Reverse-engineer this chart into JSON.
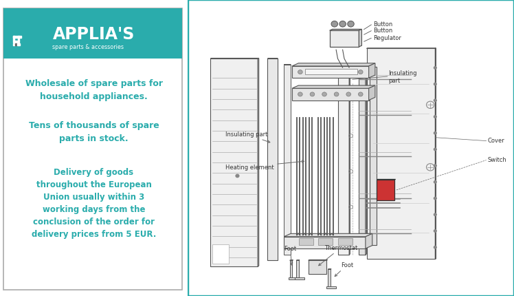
{
  "bg_color": "#ffffff",
  "header_bg": "#2aacac",
  "header_text_color": "#ffffff",
  "body_text_color": "#2aacac",
  "diagram_bg": "#ffffff",
  "diagram_border": "#2aacac",
  "line_color": "#555555",
  "light_line": "#888888",
  "figsize": [
    7.48,
    4.31
  ],
  "dpi": 100,
  "texts": [
    "Wholesale of spare parts for\nhousehold appliances.",
    "Tens of thousands of spare\nparts in stock.",
    "Delivery of goods\nthroughout the European\nUnion usually within 3\nworking days from the\nconclusion of the order for\ndelivery prices from 5 EUR."
  ]
}
